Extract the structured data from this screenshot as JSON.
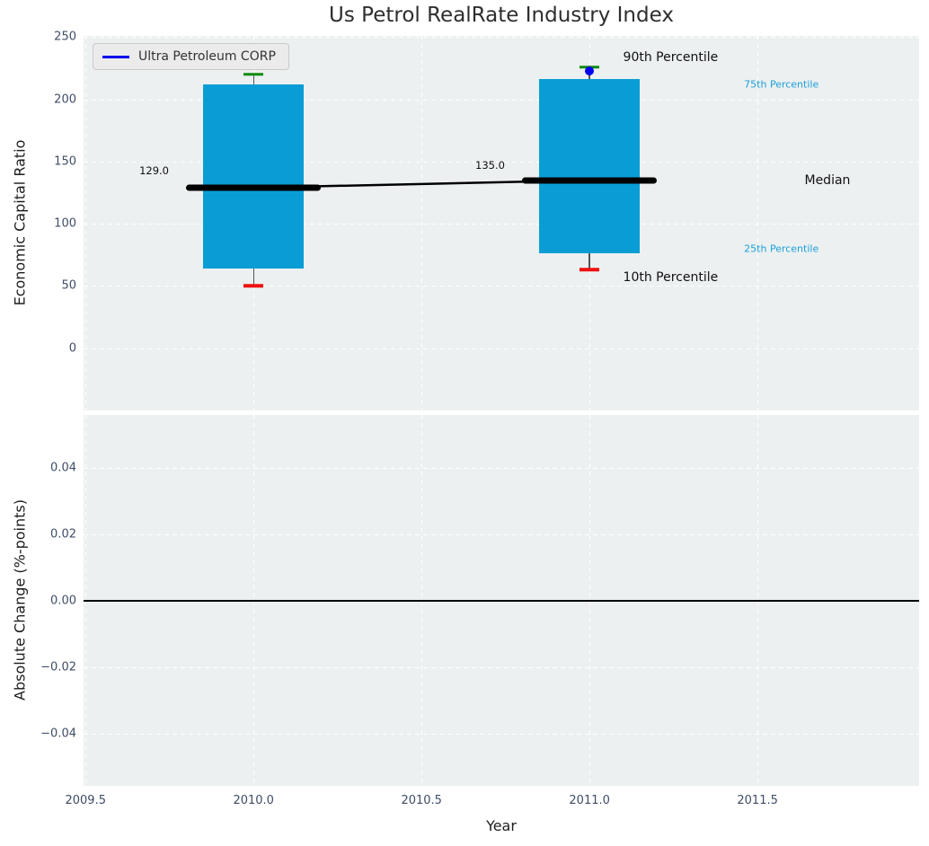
{
  "figure_title": "Us Petrol RealRate Industry Index",
  "legend": {
    "label": "Ultra Petroleum CORP"
  },
  "axis_labels": {
    "top_y": "Economic Capital Ratio",
    "bottom_y": "Absolute Change (%-points)",
    "x": "Year"
  },
  "colors": {
    "axes_background": "#ecf0f1",
    "grid": "#ffffff",
    "tick_label": "#3e4d66",
    "title_text": "#2e2e2e",
    "box_fill": "#0a9dd5",
    "whisker": "#555555",
    "cap_high_green": "#0e8c0e",
    "cap_low_red": "#ee1111",
    "median_line": "#000000",
    "company_marker_blue": "#0000ee",
    "percentile_label_cyan": "#1c9fd8",
    "annotation_black": "#111111",
    "zero_line": "#000000"
  },
  "chart_data": [
    {
      "type": "boxplot",
      "title": "Us Petrol RealRate Industry Index",
      "ylabel": "Economic Capital Ratio",
      "xlabel": "Year",
      "ylim": [
        -50,
        251
      ],
      "yticks": [
        250,
        200,
        150,
        100,
        50,
        0
      ],
      "ytick_labels": [
        "250",
        "200",
        "150",
        "100",
        "50",
        "0"
      ],
      "xlim": [
        2009.494,
        2011.981
      ],
      "xticks": [
        2009.5,
        2010.0,
        2010.5,
        2011.0,
        2011.5
      ],
      "grid": true,
      "legend": {
        "label": "Ultra Petroleum CORP",
        "position": "upper left"
      },
      "box_width_years": 0.3,
      "median_bar_width_years": 0.4,
      "cap_width_years": 0.06,
      "boxes": [
        {
          "year": 2010,
          "p90": 220,
          "p75": 212,
          "median": 129,
          "p25": 64,
          "p10": 50
        },
        {
          "year": 2011,
          "p90": 226,
          "p75": 216,
          "median": 135,
          "p25": 76,
          "p10": 63,
          "company_value": 223
        }
      ],
      "median_trend": [
        {
          "x": 2010,
          "y": 129
        },
        {
          "x": 2011,
          "y": 135
        }
      ],
      "annotations": [
        {
          "text": "90th Percentile",
          "x": 2011.1,
          "y": 234,
          "color": "#111111",
          "size": 14
        },
        {
          "text": "75th Percentile",
          "x": 2011.46,
          "y": 212,
          "color": "#1c9fd8",
          "size": 11
        },
        {
          "text": "Median",
          "x": 2011.64,
          "y": 135,
          "color": "#111111",
          "size": 14
        },
        {
          "text": "25th Percentile",
          "x": 2011.46,
          "y": 80,
          "color": "#1c9fd8",
          "size": 11
        },
        {
          "text": "10th Percentile",
          "x": 2011.1,
          "y": 57,
          "color": "#111111",
          "size": 14
        },
        {
          "text": "129.0",
          "x": 2009.66,
          "y": 143,
          "color": "#111111",
          "size": 11.5
        },
        {
          "text": "135.0",
          "x": 2010.66,
          "y": 147,
          "color": "#111111",
          "size": 11.5
        }
      ]
    },
    {
      "type": "line",
      "ylabel": "Absolute Change (%-points)",
      "xlabel": "Year",
      "ylim": [
        -0.0555,
        0.0558
      ],
      "yticks": [
        0.04,
        0.02,
        0,
        -0.02,
        -0.04
      ],
      "ytick_labels": [
        "0.04",
        "0.02",
        "0.00",
        "−0.02",
        "−0.04"
      ],
      "xlim": [
        2009.494,
        2011.981
      ],
      "xticks": [
        2009.5,
        2010.0,
        2010.5,
        2011.0,
        2011.5
      ],
      "xtick_labels": [
        "2009.5",
        "2010.0",
        "2010.5",
        "2011.0",
        "2011.5"
      ],
      "grid": true,
      "zero_line": 0,
      "series": []
    }
  ]
}
